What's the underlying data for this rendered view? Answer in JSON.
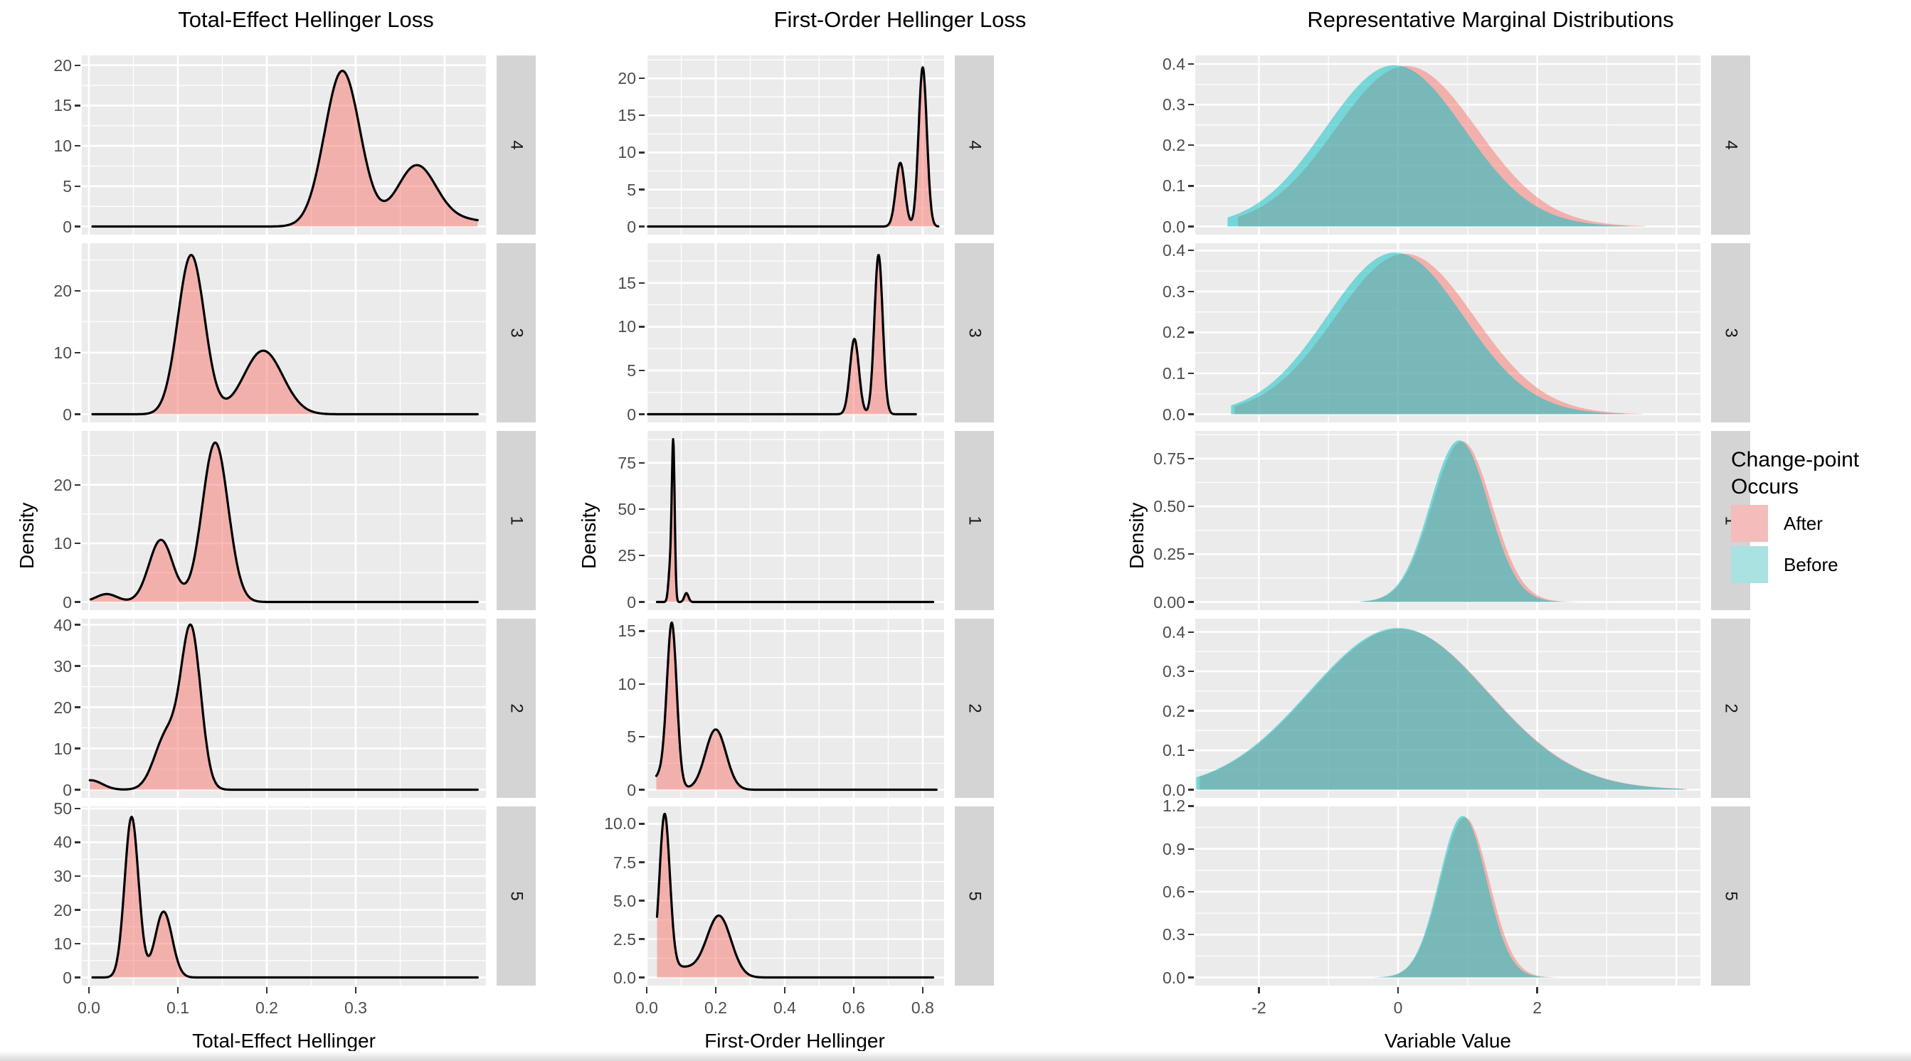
{
  "legend": {
    "title": "Change-point\nOccurs",
    "items": [
      {
        "label": "After",
        "color": "#F4BCBA"
      },
      {
        "label": "Before",
        "color": "#A9E2E0"
      }
    ]
  },
  "facet_labels": [
    "4",
    "3",
    "1",
    "2",
    "5"
  ],
  "colors": {
    "panel_bg": "#EBEBEB",
    "grid": "#FFFFFF",
    "strip_bg": "#D4D4D4",
    "after_fill": "rgba(248,118,109,0.5)",
    "before_fill": "rgba(0,191,196,0.5)",
    "curve_stroke": "#000000",
    "tick_text": "#4D4D4D"
  },
  "chart_data": [
    {
      "type": "area",
      "subtype": "density-facets",
      "title": "Total-Effect Hellinger Loss",
      "xlabel": "Total-Effect Hellinger",
      "ylabel": "Density",
      "legend_series": "After",
      "x_domain": [
        -0.008,
        0.4464
      ],
      "x_ticks": [
        {
          "v": 0,
          "label": "0.0"
        },
        {
          "v": 0.1,
          "label": "0.1"
        },
        {
          "v": 0.2,
          "label": "0.2"
        },
        {
          "v": 0.3,
          "label": "0.3"
        }
      ],
      "x_grid_major": [
        0,
        0.1,
        0.2,
        0.3,
        0.4
      ],
      "x_grid_minor": [
        0.05,
        0.15,
        0.25,
        0.35
      ],
      "panels": [
        {
          "facet": "4",
          "ymax": 20.2,
          "y_ticks": [
            {
              "v": 0,
              "label": "0"
            },
            {
              "v": 5,
              "label": "5"
            },
            {
              "v": 10,
              "label": "10"
            },
            {
              "v": 15,
              "label": "15"
            },
            {
              "v": 20,
              "label": "20"
            }
          ],
          "series": [
            {
              "name": "After",
              "support": [
                0.004,
                0.437
              ],
              "components": [
                [
                  0.285,
                  0.02,
                  19.3
                ],
                [
                  0.368,
                  0.022,
                  7.3
                ],
                [
                  0.418,
                  0.035,
                  0.85
                ]
              ]
            }
          ]
        },
        {
          "facet": "3",
          "ymax": 26.4,
          "y_ticks": [
            {
              "v": 0,
              "label": "0"
            },
            {
              "v": 10,
              "label": "10"
            },
            {
              "v": 20,
              "label": "20"
            }
          ],
          "series": [
            {
              "name": "After",
              "support": [
                0.004,
                0.437
              ],
              "components": [
                [
                  0.115,
                  0.015,
                  25.8
                ],
                [
                  0.196,
                  0.022,
                  10.3
                ]
              ]
            }
          ]
        },
        {
          "facet": "1",
          "ymax": 27.8,
          "y_ticks": [
            {
              "v": 0,
              "label": "0"
            },
            {
              "v": 10,
              "label": "10"
            },
            {
              "v": 20,
              "label": "20"
            }
          ],
          "series": [
            {
              "name": "After",
              "support": [
                0.002,
                0.437
              ],
              "components": [
                [
                  0.02,
                  0.012,
                  1.35
                ],
                [
                  0.081,
                  0.0135,
                  10.6
                ],
                [
                  0.142,
                  0.0145,
                  27.2
                ]
              ]
            }
          ]
        },
        {
          "facet": "2",
          "ymax": 39.5,
          "y_ticks": [
            {
              "v": 0,
              "label": "0"
            },
            {
              "v": 10,
              "label": "10"
            },
            {
              "v": 20,
              "label": "20"
            },
            {
              "v": 30,
              "label": "30"
            },
            {
              "v": 40,
              "label": "40"
            }
          ],
          "series": [
            {
              "name": "After",
              "support": [
                0.001,
                0.437
              ],
              "components": [
                [
                  0.002,
                  0.013,
                  2.3
                ],
                [
                  0.088,
                  0.014,
                  13.5
                ],
                [
                  0.115,
                  0.011,
                  37.8
                ]
              ]
            }
          ]
        },
        {
          "facet": "5",
          "ymax": 48.2,
          "y_ticks": [
            {
              "v": 0,
              "label": "0"
            },
            {
              "v": 10,
              "label": "10"
            },
            {
              "v": 20,
              "label": "20"
            },
            {
              "v": 30,
              "label": "30"
            },
            {
              "v": 40,
              "label": "40"
            },
            {
              "v": 50,
              "label": "50"
            }
          ],
          "series": [
            {
              "name": "After",
              "support": [
                0.004,
                0.437
              ],
              "components": [
                [
                  0.048,
                  0.0078,
                  47.5
                ],
                [
                  0.084,
                  0.0095,
                  19.5
                ]
              ]
            }
          ]
        }
      ]
    },
    {
      "type": "area",
      "subtype": "density-facets",
      "title": "First-Order Hellinger Loss",
      "xlabel": "First-Order Hellinger",
      "ylabel": "Density",
      "legend_series": "After",
      "x_domain": [
        -0.002,
        0.862
      ],
      "x_ticks": [
        {
          "v": 0,
          "label": "0.0"
        },
        {
          "v": 0.2,
          "label": "0.2"
        },
        {
          "v": 0.4,
          "label": "0.4"
        },
        {
          "v": 0.6,
          "label": "0.6"
        },
        {
          "v": 0.8,
          "label": "0.8"
        }
      ],
      "x_grid_major": [
        0,
        0.2,
        0.4,
        0.6,
        0.8
      ],
      "x_grid_minor": [
        0.1,
        0.3,
        0.5,
        0.7
      ],
      "panels": [
        {
          "facet": "4",
          "ymax": 22.0,
          "y_ticks": [
            {
              "v": 0,
              "label": "0"
            },
            {
              "v": 5,
              "label": "5"
            },
            {
              "v": 10,
              "label": "10"
            },
            {
              "v": 15,
              "label": "15"
            },
            {
              "v": 20,
              "label": "20"
            }
          ],
          "series": [
            {
              "name": "After",
              "support": [
                0.004,
                0.845
              ],
              "components": [
                [
                  0.735,
                  0.013,
                  8.6
                ],
                [
                  0.8,
                  0.012,
                  21.5
                ]
              ]
            }
          ]
        },
        {
          "facet": "3",
          "ymax": 18.6,
          "y_ticks": [
            {
              "v": 0,
              "label": "0"
            },
            {
              "v": 5,
              "label": "5"
            },
            {
              "v": 10,
              "label": "10"
            },
            {
              "v": 15,
              "label": "15"
            }
          ],
          "series": [
            {
              "name": "After",
              "support": [
                0.004,
                0.78
              ],
              "components": [
                [
                  0.602,
                  0.013,
                  8.6
                ],
                [
                  0.672,
                  0.012,
                  18.2
                ]
              ]
            }
          ]
        },
        {
          "facet": "1",
          "ymax": 87.8,
          "y_ticks": [
            {
              "v": 0,
              "label": "0"
            },
            {
              "v": 25,
              "label": "25"
            },
            {
              "v": 50,
              "label": "50"
            },
            {
              "v": 75,
              "label": "75"
            }
          ],
          "series": [
            {
              "name": "After",
              "support": [
                0.03,
                0.83
              ],
              "components": [
                [
                  0.077,
                  0.0042,
                  84
                ],
                [
                  0.068,
                  0.005,
                  18
                ],
                [
                  0.115,
                  0.006,
                  4.8
                ]
              ]
            }
          ]
        },
        {
          "facet": "2",
          "ymax": 15.4,
          "y_ticks": [
            {
              "v": 0,
              "label": "0"
            },
            {
              "v": 5,
              "label": "5"
            },
            {
              "v": 10,
              "label": "10"
            },
            {
              "v": 15,
              "label": "15"
            }
          ],
          "series": [
            {
              "name": "After",
              "support": [
                0.028,
                0.84
              ],
              "components": [
                [
                  0.073,
                  0.014,
                  14.6
                ],
                [
                  0.2,
                  0.03,
                  5.7
                ],
                [
                  0.05,
                  0.03,
                  1.6
                ]
              ]
            }
          ]
        },
        {
          "facet": "5",
          "ymax": 10.6,
          "y_ticks": [
            {
              "v": 0,
              "label": "0.0"
            },
            {
              "v": 2.5,
              "label": "2.5"
            },
            {
              "v": 5,
              "label": "5.0"
            },
            {
              "v": 7.5,
              "label": "7.5"
            },
            {
              "v": 10,
              "label": "10.0"
            }
          ],
          "series": [
            {
              "name": "After",
              "support": [
                0.03,
                0.83
              ],
              "components": [
                [
                  0.052,
                  0.015,
                  10.0
                ],
                [
                  0.21,
                  0.035,
                  3.9
                ],
                [
                  0.08,
                  0.07,
                  0.7
                ]
              ]
            }
          ]
        }
      ]
    },
    {
      "type": "area",
      "subtype": "density-facets-overlaid",
      "title": "Representative Marginal Distributions",
      "xlabel": "Variable Value",
      "ylabel": "Density",
      "x_domain": [
        -2.914,
        4.346
      ],
      "x_ticks": [
        {
          "v": -2,
          "label": "-2"
        },
        {
          "v": 0,
          "label": "0"
        },
        {
          "v": 2,
          "label": "2"
        }
      ],
      "x_grid_major": [
        -2,
        0,
        2,
        4
      ],
      "x_grid_minor": [
        -1,
        1,
        3
      ],
      "panels": [
        {
          "facet": "4",
          "ymax": 0.401,
          "y_ticks": [
            {
              "v": 0,
              "label": "0.0"
            },
            {
              "v": 0.1,
              "label": "0.1"
            },
            {
              "v": 0.2,
              "label": "0.2"
            },
            {
              "v": 0.3,
              "label": "0.3"
            },
            {
              "v": 0.4,
              "label": "0.4"
            }
          ],
          "series": [
            {
              "name": "After",
              "support": [
                -2.3,
                3.55
              ],
              "components": [
                [
                  0.12,
                  1.02,
                  0.395
                ]
              ]
            },
            {
              "name": "Before",
              "support": [
                -2.45,
                3.3
              ],
              "components": [
                [
                  -0.05,
                  1.0,
                  0.397
                ]
              ]
            }
          ]
        },
        {
          "facet": "3",
          "ymax": 0.398,
          "y_ticks": [
            {
              "v": 0,
              "label": "0.0"
            },
            {
              "v": 0.1,
              "label": "0.1"
            },
            {
              "v": 0.2,
              "label": "0.2"
            },
            {
              "v": 0.3,
              "label": "0.3"
            },
            {
              "v": 0.4,
              "label": "0.4"
            }
          ],
          "series": [
            {
              "name": "After",
              "support": [
                -2.35,
                3.5
              ],
              "components": [
                [
                  0.1,
                  1.0,
                  0.392
                ]
              ]
            },
            {
              "name": "Before",
              "support": [
                -2.4,
                3.25
              ],
              "components": [
                [
                  -0.04,
                  0.98,
                  0.395
                ]
              ]
            }
          ]
        },
        {
          "facet": "1",
          "ymax": 0.852,
          "y_ticks": [
            {
              "v": 0,
              "label": "0.00"
            },
            {
              "v": 0.25,
              "label": "0.25"
            },
            {
              "v": 0.5,
              "label": "0.50"
            },
            {
              "v": 0.75,
              "label": "0.75"
            }
          ],
          "series": [
            {
              "name": "After",
              "support": [
                -0.5,
                2.6
              ],
              "components": [
                [
                  0.92,
                  0.43,
                  0.84
                ]
              ]
            },
            {
              "name": "Before",
              "support": [
                -0.55,
                2.5
              ],
              "components": [
                [
                  0.88,
                  0.42,
                  0.845
                ]
              ]
            }
          ]
        },
        {
          "facet": "2",
          "ymax": 0.413,
          "y_ticks": [
            {
              "v": 0,
              "label": "0.0"
            },
            {
              "v": 0.1,
              "label": "0.1"
            },
            {
              "v": 0.2,
              "label": "0.2"
            },
            {
              "v": 0.3,
              "label": "0.3"
            },
            {
              "v": 0.4,
              "label": "0.4"
            }
          ],
          "series": [
            {
              "name": "After",
              "support": [
                -2.85,
                4.15
              ],
              "components": [
                [
                  0.02,
                  1.28,
                  0.408
                ]
              ]
            },
            {
              "name": "Before",
              "support": [
                -2.9,
                4.1
              ],
              "components": [
                [
                  0.0,
                  1.28,
                  0.41
                ]
              ]
            }
          ]
        },
        {
          "facet": "5",
          "ymax": 1.14,
          "y_ticks": [
            {
              "v": 0,
              "label": "0.0"
            },
            {
              "v": 0.3,
              "label": "0.3"
            },
            {
              "v": 0.6,
              "label": "0.6"
            },
            {
              "v": 0.9,
              "label": "0.9"
            },
            {
              "v": 1.2,
              "label": "1.2"
            }
          ],
          "series": [
            {
              "name": "After",
              "support": [
                -0.3,
                2.3
              ],
              "components": [
                [
                  0.96,
                  0.35,
                  1.12
                ]
              ]
            },
            {
              "name": "Before",
              "support": [
                -0.35,
                2.25
              ],
              "components": [
                [
                  0.93,
                  0.34,
                  1.13
                ]
              ]
            }
          ]
        }
      ]
    }
  ]
}
